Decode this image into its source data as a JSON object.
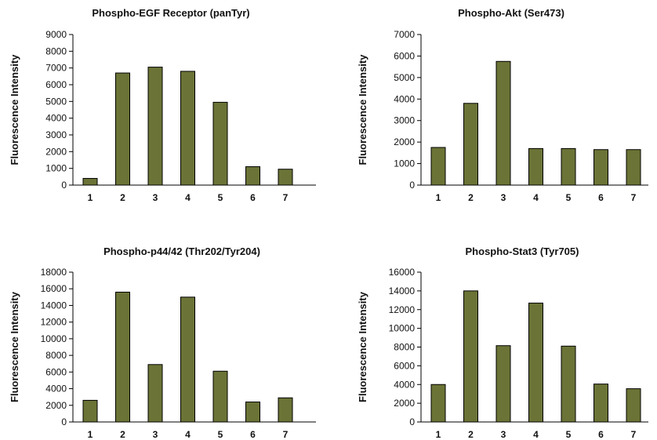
{
  "bar_color": "#6b7336",
  "chart_data": [
    {
      "type": "bar",
      "title": "Phospho-EGF Receptor (panTyr)",
      "ylabel": "Fluorescence Intensity",
      "xlabel": "",
      "categories": [
        "1",
        "2",
        "3",
        "4",
        "5",
        "6",
        "7"
      ],
      "values": [
        400,
        6700,
        7050,
        6800,
        4950,
        1100,
        950
      ],
      "ylim": [
        0,
        9000
      ],
      "yticks": [
        0,
        1000,
        2000,
        3000,
        4000,
        5000,
        6000,
        7000,
        8000,
        9000
      ]
    },
    {
      "type": "bar",
      "title": "Phospho-Akt (Ser473)",
      "ylabel": "Fluorescence Intensity",
      "xlabel": "",
      "categories": [
        "1",
        "2",
        "3",
        "4",
        "5",
        "6",
        "7"
      ],
      "values": [
        1750,
        3800,
        5750,
        1700,
        1700,
        1650,
        1650
      ],
      "ylim": [
        0,
        7000
      ],
      "yticks": [
        0,
        1000,
        2000,
        3000,
        4000,
        5000,
        6000,
        7000
      ]
    },
    {
      "type": "bar",
      "title": "Phospho-p44/42 (Thr202/Tyr204)",
      "ylabel": "Fluorescence Intensity",
      "xlabel": "",
      "categories": [
        "1",
        "2",
        "3",
        "4",
        "5",
        "6",
        "7"
      ],
      "values": [
        2600,
        15600,
        6900,
        15000,
        6100,
        2400,
        2900
      ],
      "ylim": [
        0,
        18000
      ],
      "yticks": [
        0,
        2000,
        4000,
        6000,
        8000,
        10000,
        12000,
        14000,
        16000,
        18000
      ]
    },
    {
      "type": "bar",
      "title": "Phospho-Stat3 (Tyr705)",
      "ylabel": "Fluorescence Intensity",
      "xlabel": "",
      "categories": [
        "1",
        "2",
        "3",
        "4",
        "5",
        "6",
        "7"
      ],
      "values": [
        4000,
        14000,
        8150,
        12700,
        8100,
        4050,
        3550
      ],
      "ylim": [
        0,
        16000
      ],
      "yticks": [
        0,
        2000,
        4000,
        6000,
        8000,
        10000,
        12000,
        14000,
        16000
      ]
    }
  ]
}
